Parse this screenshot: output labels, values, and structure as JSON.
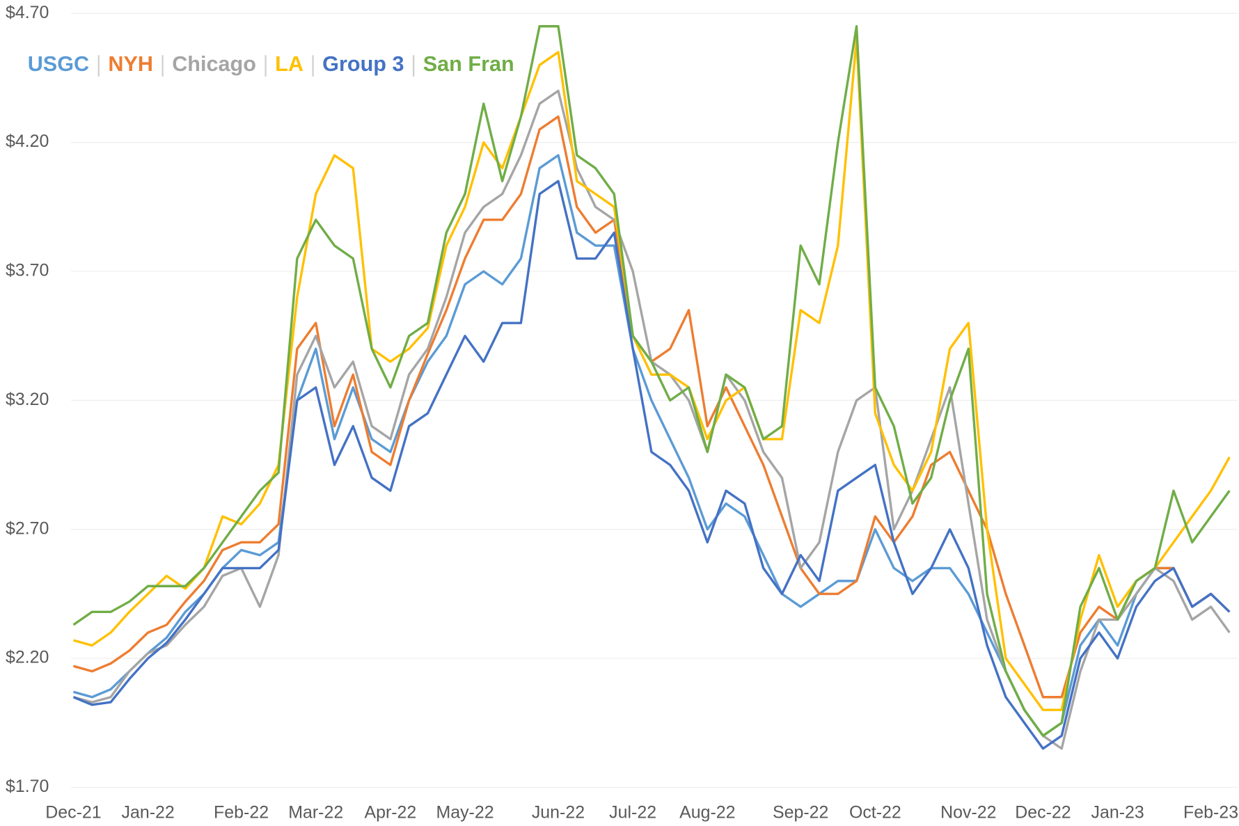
{
  "chart_data": {
    "type": "line",
    "categories": [
      "Dec-21",
      null,
      null,
      null,
      "Jan-22",
      null,
      null,
      null,
      null,
      "Feb-22",
      null,
      null,
      null,
      "Mar-22",
      null,
      null,
      null,
      "Apr-22",
      null,
      null,
      null,
      "May-22",
      null,
      null,
      null,
      null,
      "Jun-22",
      null,
      null,
      null,
      "Jul-22",
      null,
      null,
      null,
      "Aug-22",
      null,
      null,
      null,
      null,
      "Sep-22",
      null,
      null,
      null,
      "Oct-22",
      null,
      null,
      null,
      null,
      "Nov-22",
      null,
      null,
      null,
      "Dec-22",
      null,
      null,
      null,
      "Jan-23",
      null,
      null,
      null,
      null,
      "Feb-23",
      null
    ],
    "series": [
      {
        "name": "USGC",
        "color": "#5b9bd5",
        "values": [
          2.07,
          2.05,
          2.08,
          2.15,
          2.22,
          2.28,
          2.38,
          2.45,
          2.55,
          2.62,
          2.6,
          2.65,
          3.2,
          3.4,
          3.05,
          3.25,
          3.05,
          3.0,
          3.2,
          3.35,
          3.45,
          3.65,
          3.7,
          3.65,
          3.75,
          4.1,
          4.15,
          3.85,
          3.8,
          3.8,
          3.4,
          3.2,
          3.05,
          2.9,
          2.7,
          2.8,
          2.75,
          2.6,
          2.45,
          2.4,
          2.45,
          2.5,
          2.5,
          2.7,
          2.55,
          2.5,
          2.55,
          2.55,
          2.45,
          2.3,
          2.15,
          2.0,
          1.9,
          1.95,
          2.25,
          2.35,
          2.25,
          2.45,
          2.55,
          2.55,
          2.4,
          2.45,
          2.38
        ]
      },
      {
        "name": "NYH",
        "color": "#ed7d31",
        "values": [
          2.17,
          2.15,
          2.18,
          2.23,
          2.3,
          2.33,
          2.42,
          2.5,
          2.62,
          2.65,
          2.65,
          2.72,
          3.4,
          3.5,
          3.1,
          3.3,
          3.0,
          2.95,
          3.2,
          3.38,
          3.55,
          3.75,
          3.9,
          3.9,
          4.0,
          4.25,
          4.3,
          3.95,
          3.85,
          3.9,
          3.45,
          3.35,
          3.4,
          3.55,
          3.1,
          3.25,
          3.1,
          2.95,
          2.75,
          2.55,
          2.45,
          2.45,
          2.5,
          2.75,
          2.65,
          2.75,
          2.95,
          3.0,
          2.85,
          2.7,
          2.45,
          2.25,
          2.05,
          2.05,
          2.3,
          2.4,
          2.35,
          2.5,
          2.55,
          2.55,
          2.4,
          2.45,
          2.38
        ]
      },
      {
        "name": "Chicago",
        "color": "#a5a5a5",
        "values": [
          2.05,
          2.03,
          2.05,
          2.15,
          2.22,
          2.25,
          2.33,
          2.4,
          2.52,
          2.55,
          2.4,
          2.6,
          3.3,
          3.45,
          3.25,
          3.35,
          3.1,
          3.05,
          3.3,
          3.4,
          3.6,
          3.85,
          3.95,
          4.0,
          4.15,
          4.35,
          4.4,
          4.1,
          3.95,
          3.9,
          3.7,
          3.35,
          3.3,
          3.2,
          3.0,
          3.3,
          3.2,
          3.0,
          2.9,
          2.55,
          2.65,
          3.0,
          3.2,
          3.25,
          2.7,
          2.85,
          3.05,
          3.25,
          2.8,
          2.35,
          2.15,
          2.0,
          1.9,
          1.85,
          2.15,
          2.35,
          2.35,
          2.45,
          2.55,
          2.5,
          2.35,
          2.4,
          2.3
        ]
      },
      {
        "name": "LA",
        "color": "#ffc000",
        "values": [
          2.27,
          2.25,
          2.3,
          2.38,
          2.45,
          2.52,
          2.47,
          2.55,
          2.75,
          2.72,
          2.8,
          2.95,
          3.6,
          4.0,
          4.15,
          4.1,
          3.4,
          3.35,
          3.4,
          3.48,
          3.8,
          3.95,
          4.2,
          4.1,
          4.3,
          4.5,
          4.55,
          4.05,
          4.0,
          3.95,
          3.45,
          3.3,
          3.3,
          3.25,
          3.05,
          3.2,
          3.25,
          3.05,
          3.05,
          3.55,
          3.5,
          3.8,
          4.6,
          3.15,
          2.95,
          2.85,
          3.0,
          3.4,
          3.5,
          2.7,
          2.2,
          2.1,
          2.0,
          2.0,
          2.35,
          2.6,
          2.4,
          2.5,
          2.55,
          2.65,
          2.75,
          2.85,
          2.98
        ]
      },
      {
        "name": "Group 3",
        "color": "#4472c4",
        "values": [
          2.05,
          2.02,
          2.03,
          2.12,
          2.2,
          2.26,
          2.35,
          2.45,
          2.55,
          2.55,
          2.55,
          2.62,
          3.2,
          3.25,
          2.95,
          3.1,
          2.9,
          2.85,
          3.1,
          3.15,
          3.3,
          3.45,
          3.35,
          3.5,
          3.5,
          4.0,
          4.05,
          3.75,
          3.75,
          3.85,
          3.4,
          3.0,
          2.95,
          2.85,
          2.65,
          2.85,
          2.8,
          2.55,
          2.45,
          2.6,
          2.5,
          2.85,
          2.9,
          2.95,
          2.65,
          2.45,
          2.55,
          2.7,
          2.55,
          2.25,
          2.05,
          1.95,
          1.85,
          1.9,
          2.2,
          2.3,
          2.2,
          2.4,
          2.5,
          2.55,
          2.4,
          2.45,
          2.38
        ]
      },
      {
        "name": "San Fran",
        "color": "#70ad47",
        "values": [
          2.33,
          2.38,
          2.38,
          2.42,
          2.48,
          2.48,
          2.48,
          2.55,
          2.65,
          2.75,
          2.85,
          2.92,
          3.75,
          3.9,
          3.8,
          3.75,
          3.4,
          3.25,
          3.45,
          3.5,
          3.85,
          4.0,
          4.35,
          4.05,
          4.3,
          4.65,
          4.65,
          4.15,
          4.1,
          4.0,
          3.45,
          3.35,
          3.2,
          3.25,
          3.0,
          3.3,
          3.25,
          3.05,
          3.1,
          3.8,
          3.65,
          4.2,
          4.65,
          3.25,
          3.1,
          2.8,
          2.9,
          3.2,
          3.4,
          2.45,
          2.15,
          2.0,
          1.9,
          1.95,
          2.4,
          2.55,
          2.35,
          2.5,
          2.55,
          2.85,
          2.65,
          2.75,
          2.85
        ]
      }
    ],
    "ylim": [
      1.7,
      4.7
    ],
    "yticks": [
      {
        "value": 1.7,
        "label": "$1.70"
      },
      {
        "value": 2.2,
        "label": "$2.20"
      },
      {
        "value": 2.7,
        "label": "$2.70"
      },
      {
        "value": 3.2,
        "label": "$3.20"
      },
      {
        "value": 3.7,
        "label": "$3.70"
      },
      {
        "value": 4.2,
        "label": "$4.20"
      },
      {
        "value": 4.7,
        "label": "$4.70"
      }
    ],
    "grid": true
  }
}
